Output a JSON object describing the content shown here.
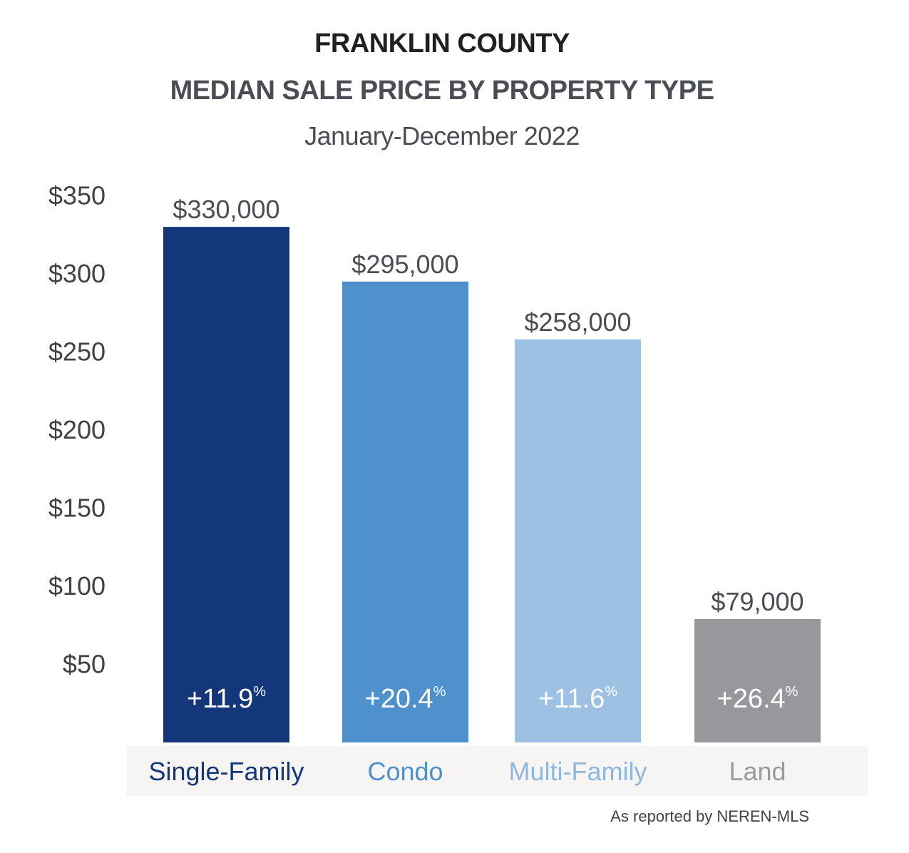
{
  "title_line1": "FRANKLIN COUNTY",
  "title_line2": "MEDIAN SALE PRICE BY PROPERTY TYPE",
  "subtitle": "January-December 2022",
  "footnote": "As reported by NEREN-MLS",
  "chart_data": {
    "type": "bar",
    "categories": [
      "Single-Family",
      "Condo",
      "Multi-Family",
      "Land"
    ],
    "values": [
      330000,
      295000,
      258000,
      79000
    ],
    "value_labels": [
      "$330,000",
      "$295,000",
      "$258,000",
      "$79,000"
    ],
    "change_labels": [
      "+11.9",
      "+20.4",
      "+11.6",
      "+26.4"
    ],
    "change_unit": "%",
    "colors": [
      "#14367a",
      "#4f91cd",
      "#9cc1e3",
      "#97989b"
    ],
    "category_label_colors": [
      "#14367a",
      "#4f91cd",
      "#8fb8df",
      "#9a9b9e"
    ],
    "ytick_values": [
      50000,
      100000,
      150000,
      200000,
      250000,
      300000,
      350000
    ],
    "ytick_labels": [
      "$50",
      "$100",
      "$150",
      "$200",
      "$250",
      "$300",
      "$350"
    ],
    "ylim": [
      0,
      350000
    ],
    "grid": false,
    "legend": "none",
    "category_band_color": "#f6f5f3"
  }
}
